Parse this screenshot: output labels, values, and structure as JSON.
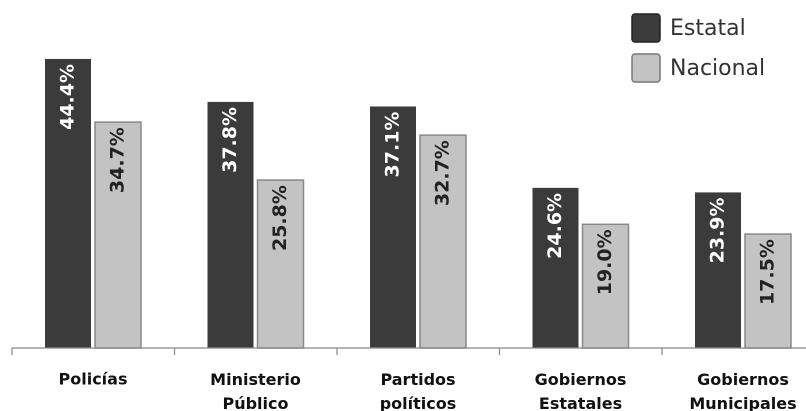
{
  "chart_data": {
    "type": "bar",
    "categories": [
      "Policías",
      "Ministerio Público",
      "Partidos políticos",
      "Gobiernos Estatales",
      "Gobiernos Municipales"
    ],
    "series": [
      {
        "name": "Estatal",
        "color": "#3b3b3b",
        "values": [
          44.4,
          37.8,
          37.1,
          24.6,
          23.9
        ],
        "value_labels": [
          "44.4%",
          "37.8%",
          "37.1%",
          "24.6%",
          "23.9%"
        ]
      },
      {
        "name": "Nacional",
        "color": "#c3c3c3",
        "values": [
          34.7,
          25.8,
          32.7,
          19.0,
          17.5
        ],
        "value_labels": [
          "34.7%",
          "25.8%",
          "32.7%",
          "19.0%",
          "17.5%"
        ]
      }
    ],
    "ylim": [
      0,
      50
    ],
    "legend": "upper right"
  }
}
